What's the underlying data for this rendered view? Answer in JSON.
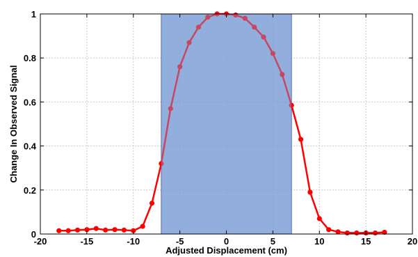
{
  "chart_data": {
    "type": "line",
    "title": "",
    "xlabel": "Adjusted Displacement (cm)",
    "ylabel": "Change In Observed Signal",
    "xlim": [
      -20,
      20
    ],
    "ylim": [
      0,
      1
    ],
    "x_ticks": [
      -20,
      -15,
      -10,
      -5,
      0,
      5,
      10,
      15,
      20
    ],
    "x_tick_labels": [
      "-20",
      "-15",
      "-10",
      "-5",
      "0",
      "5",
      "10",
      "15",
      "20"
    ],
    "y_ticks": [
      0,
      0.2,
      0.4,
      0.6,
      0.8,
      1
    ],
    "y_tick_labels": [
      "0",
      "0.2",
      "0.4",
      "0.6",
      "0.8",
      "1"
    ],
    "grid": true,
    "legend": "none",
    "highlight_region": {
      "x_start": -7,
      "x_end": 7,
      "y_start": 0,
      "y_end": 1,
      "color": "#7f9fd6"
    },
    "series": [
      {
        "color": "#ff0000",
        "x": [
          -18,
          -17,
          -16,
          -15,
          -14,
          -13,
          -12,
          -11,
          -10,
          -9,
          -8,
          -7,
          -6,
          -5,
          -4,
          -3,
          -2,
          -1,
          0,
          1,
          2,
          3,
          4,
          5,
          6,
          7,
          8,
          9,
          10,
          11,
          12,
          13,
          14,
          15,
          16,
          17
        ],
        "y": [
          0.015,
          0.015,
          0.018,
          0.02,
          0.025,
          0.018,
          0.02,
          0.018,
          0.015,
          0.035,
          0.14,
          0.32,
          0.57,
          0.76,
          0.87,
          0.94,
          0.985,
          1.0,
          1.0,
          0.995,
          0.98,
          0.94,
          0.895,
          0.82,
          0.725,
          0.585,
          0.43,
          0.19,
          0.07,
          0.02,
          0.01,
          0.005,
          0.005,
          0.005,
          0.005,
          0.008
        ]
      }
    ]
  }
}
